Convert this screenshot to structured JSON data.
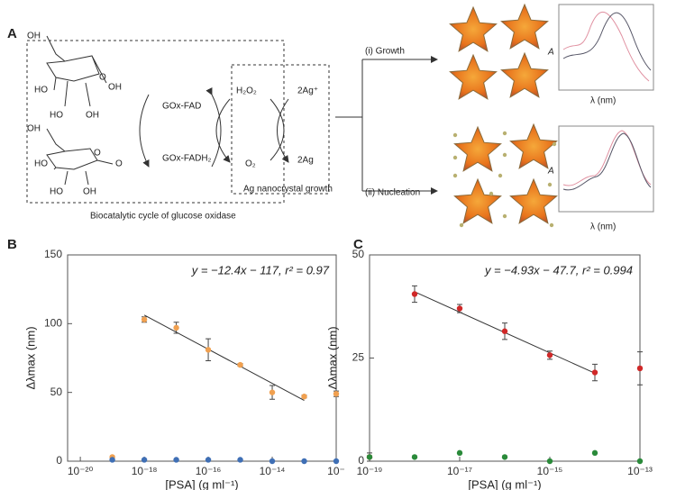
{
  "panel_a": {
    "label": "A",
    "glucose_labels": [
      "OH",
      "O",
      "OH",
      "HO",
      "HO",
      "OH"
    ],
    "lactone_labels": [
      "OH",
      "O",
      "HO",
      "O",
      "HO",
      "OH"
    ],
    "cycle": {
      "gox_fad": "GOx-FAD",
      "gox_fadh2": "GOx-FADH₂",
      "h2o2": "H₂O₂",
      "o2": "O₂",
      "ag_plus": "2Ag⁺",
      "ag": "2Ag"
    },
    "ag_growth": "Ag nanocrystal growth",
    "caption": "Biocatalytic cycle of glucose oxidase",
    "growth": "(i) Growth",
    "nucleation": "(ii) Nucleation",
    "spectrum_top": {
      "y_label": "A",
      "x_label": "λ (nm)"
    },
    "spectrum_bottom": {
      "y_label": "A",
      "x_label": "λ (nm)"
    }
  },
  "chart_data": [
    {
      "type": "scatter",
      "label": "B",
      "annotation": "y = −12.4x − 117, r² = 0.97",
      "x_label": "[PSA] (g ml⁻¹)",
      "y_label": "Δλmax (nm)",
      "xscale": "log",
      "x": [
        1e-19,
        1e-18,
        1e-17,
        1e-16,
        1e-15,
        1e-14,
        1e-13,
        1e-12
      ],
      "series": [
        {
          "name": null,
          "color": "#f0a050",
          "values": [
            3,
            103,
            97,
            81,
            70,
            50,
            47,
            49
          ],
          "errors": [
            0,
            2,
            4,
            8,
            1,
            5,
            1,
            2
          ]
        },
        {
          "name": null,
          "color": "#3f6fb5",
          "values": [
            1,
            1,
            1,
            1,
            1,
            0,
            0,
            0
          ],
          "errors": [
            0,
            0,
            0,
            0,
            0,
            0,
            0,
            0
          ]
        }
      ],
      "fit": {
        "x": [
          1e-18,
          1e-13
        ],
        "values": [
          106.2,
          44.2
        ]
      },
      "xlim": [
        4e-21,
        1e-12
      ],
      "ylim": [
        0,
        150
      ],
      "xticks": [
        {
          "value": 1e-20,
          "label": "10⁻²⁰"
        },
        {
          "value": 1e-18,
          "label": "10⁻¹⁸"
        },
        {
          "value": 1e-16,
          "label": "10⁻¹⁶"
        },
        {
          "value": 1e-14,
          "label": "10⁻¹⁴"
        },
        {
          "value": 1e-12,
          "label": "10⁻"
        }
      ],
      "yticks": [
        0,
        50,
        100,
        150
      ]
    },
    {
      "type": "scatter",
      "label": "C",
      "annotation": "y = −4.93x − 47.7, r² = 0.994",
      "x_label": "[PSA] (g ml⁻¹)",
      "y_label": "Δλmax (nm)",
      "xscale": "log",
      "x": [
        1e-19,
        1e-18,
        1e-17,
        1e-16,
        1e-15,
        1e-14,
        1e-13
      ],
      "series": [
        {
          "name": null,
          "color": "#d02828",
          "values": [
            1,
            40.5,
            37,
            31.5,
            25.7,
            21.5,
            22.5
          ],
          "errors": [
            1,
            2,
            1,
            2,
            1,
            2,
            4
          ]
        },
        {
          "name": null,
          "color": "#2a8a3a",
          "values": [
            1,
            1,
            2,
            1,
            0,
            2,
            0
          ],
          "errors": [
            0,
            0,
            0,
            0,
            0,
            0,
            0
          ]
        }
      ],
      "fit": {
        "x": [
          1e-18,
          1e-14
        ],
        "values": [
          41.06,
          21.32
        ]
      },
      "xlim": [
        1e-19,
        1e-13
      ],
      "ylim": [
        0,
        50
      ],
      "xticks": [
        {
          "value": 1e-19,
          "label": "10⁻¹⁹"
        },
        {
          "value": 1e-17,
          "label": "10⁻¹⁷"
        },
        {
          "value": 1e-15,
          "label": "10⁻¹⁵"
        },
        {
          "value": 1e-13,
          "label": "10⁻¹³"
        }
      ],
      "yticks": [
        0,
        25,
        50
      ]
    }
  ]
}
